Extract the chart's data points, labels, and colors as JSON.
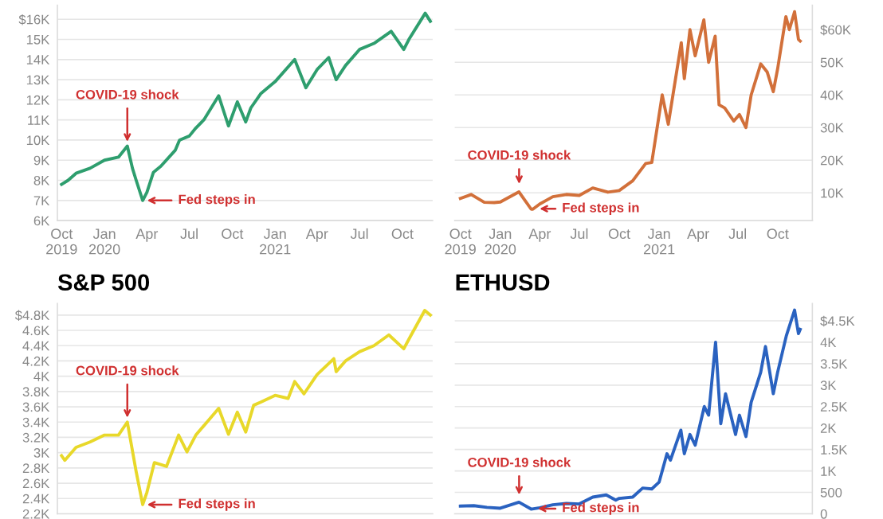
{
  "chart_data": [
    {
      "type": "line",
      "grid": "y",
      "x": [
        "2019-10-01",
        "2019-10-15",
        "2019-11-01",
        "2019-12-01",
        "2020-01-01",
        "2020-01-31",
        "2020-02-19",
        "2020-03-01",
        "2020-03-09",
        "2020-03-23",
        "2020-04-01",
        "2020-04-15",
        "2020-05-01",
        "2020-06-01",
        "2020-06-10",
        "2020-07-01",
        "2020-07-15",
        "2020-08-01",
        "2020-09-02",
        "2020-09-23",
        "2020-10-12",
        "2020-10-30",
        "2020-11-10",
        "2020-12-01",
        "2021-01-01",
        "2021-02-12",
        "2021-03-08",
        "2021-04-01",
        "2021-04-26",
        "2021-05-12",
        "2021-06-01",
        "2021-07-01",
        "2021-08-01",
        "2021-09-07",
        "2021-10-04",
        "2021-10-15",
        "2021-11-19",
        "2021-11-30"
      ],
      "series": [
        {
          "color": "#2e9e6e",
          "values": [
            7800,
            8000,
            8350,
            8600,
            9000,
            9150,
            9700,
            8600,
            8000,
            7000,
            7400,
            8400,
            8700,
            9500,
            10000,
            10200,
            10600,
            11000,
            12200,
            10700,
            11900,
            10900,
            11600,
            12300,
            12900,
            14000,
            12600,
            13500,
            14100,
            13000,
            13700,
            14500,
            14800,
            15400,
            14500,
            15000,
            16300,
            15900
          ]
        }
      ],
      "xlim": [
        "2019-09-22",
        "2021-12-05"
      ],
      "xticks": [
        {
          "value": "2019-10-01",
          "label": "Oct\n2019"
        },
        {
          "value": "2020-01-01",
          "label": "Jan\n2020"
        },
        {
          "value": "2020-04-01",
          "label": "Apr"
        },
        {
          "value": "2020-07-01",
          "label": "Jul"
        },
        {
          "value": "2020-10-01",
          "label": "Oct"
        },
        {
          "value": "2021-01-01",
          "label": "Jan\n2021"
        },
        {
          "value": "2021-04-01",
          "label": "Apr"
        },
        {
          "value": "2021-07-01",
          "label": "Jul"
        },
        {
          "value": "2021-10-01",
          "label": "Oct"
        }
      ],
      "ylim": [
        6000,
        16700
      ],
      "yticks": [
        {
          "value": 16000,
          "label": "$16K"
        },
        {
          "value": 15000,
          "label": "15K"
        },
        {
          "value": 14000,
          "label": "14K"
        },
        {
          "value": 13000,
          "label": "13K"
        },
        {
          "value": 12000,
          "label": "12K"
        },
        {
          "value": 11000,
          "label": "11K"
        },
        {
          "value": 10000,
          "label": "10K"
        },
        {
          "value": 9000,
          "label": "9K"
        },
        {
          "value": 8000,
          "label": "8K"
        },
        {
          "value": 7000,
          "label": "7K"
        },
        {
          "value": 6000,
          "label": "6K"
        }
      ],
      "annotations": [
        {
          "text": "COVID-19 shock",
          "x": "2020-02-19",
          "y": 9700
        },
        {
          "text": "Fed steps in",
          "x": "2020-03-23",
          "y": 7000
        }
      ]
    },
    {
      "type": "line",
      "grid": "y",
      "x": [
        "2019-10-01",
        "2019-10-26",
        "2019-11-25",
        "2019-12-18",
        "2020-01-01",
        "2020-02-13",
        "2020-03-12",
        "2020-03-16",
        "2020-04-01",
        "2020-05-01",
        "2020-06-01",
        "2020-07-01",
        "2020-08-01",
        "2020-09-05",
        "2020-10-01",
        "2020-11-01",
        "2020-12-01",
        "2020-12-15",
        "2021-01-08",
        "2021-01-22",
        "2021-02-21",
        "2021-02-28",
        "2021-03-13",
        "2021-03-25",
        "2021-04-14",
        "2021-04-25",
        "2021-05-10",
        "2021-05-19",
        "2021-06-01",
        "2021-06-22",
        "2021-07-05",
        "2021-07-20",
        "2021-08-01",
        "2021-08-23",
        "2021-09-07",
        "2021-09-21",
        "2021-10-01",
        "2021-10-20",
        "2021-10-28",
        "2021-11-09",
        "2021-11-18",
        "2021-11-22"
      ],
      "series": [
        {
          "color": "#d2703a",
          "axis": "y2",
          "values": [
            8300,
            9500,
            7100,
            7000,
            7200,
            10300,
            5000,
            5000,
            6600,
            8800,
            9500,
            9200,
            11500,
            10200,
            10700,
            13700,
            19000,
            19300,
            40000,
            31000,
            56000,
            45000,
            60000,
            52000,
            63000,
            50000,
            58000,
            37000,
            36000,
            32000,
            34000,
            30000,
            40000,
            49500,
            47000,
            41000,
            48000,
            64000,
            60000,
            65500,
            57000,
            56500
          ]
        }
      ],
      "xlim": [
        "2019-09-18",
        "2021-12-20"
      ],
      "xticks": [
        {
          "value": "2019-10-01",
          "label": "Oct\n2019"
        },
        {
          "value": "2020-01-01",
          "label": "Jan\n2020"
        },
        {
          "value": "2020-04-01",
          "label": "Apr"
        },
        {
          "value": "2020-07-01",
          "label": "Jul"
        },
        {
          "value": "2020-10-01",
          "label": "Oct"
        },
        {
          "value": "2021-01-01",
          "label": "Jan\n2021"
        },
        {
          "value": "2021-04-01",
          "label": "Apr"
        },
        {
          "value": "2021-07-01",
          "label": "Jul"
        },
        {
          "value": "2021-10-01",
          "label": "Oct"
        }
      ],
      "y2lim": [
        1500,
        67500
      ],
      "y2ticks": [
        {
          "value": 60000,
          "label": "$60K"
        },
        {
          "value": 50000,
          "label": "50K"
        },
        {
          "value": 40000,
          "label": "40K"
        },
        {
          "value": 30000,
          "label": "30K"
        },
        {
          "value": 20000,
          "label": "20K"
        },
        {
          "value": 10000,
          "label": "10K"
        }
      ],
      "annotations": [
        "COVID-19 shock",
        "Fed steps in"
      ]
    },
    {
      "type": "line",
      "grid": "y",
      "title": "S&P 500",
      "tick_labels": "y",
      "x": [
        "2019-10-01",
        "2019-10-08",
        "2019-11-01",
        "2019-12-01",
        "2020-01-01",
        "2020-01-31",
        "2020-02-19",
        "2020-03-09",
        "2020-03-23",
        "2020-04-01",
        "2020-04-17",
        "2020-05-13",
        "2020-06-08",
        "2020-06-26",
        "2020-07-15",
        "2020-09-02",
        "2020-09-23",
        "2020-10-12",
        "2020-10-30",
        "2020-11-16",
        "2020-12-01",
        "2021-01-01",
        "2021-01-29",
        "2021-02-12",
        "2021-03-04",
        "2021-04-01",
        "2021-05-07",
        "2021-05-12",
        "2021-06-01",
        "2021-07-01",
        "2021-08-01",
        "2021-09-02",
        "2021-10-04",
        "2021-10-20",
        "2021-11-18",
        "2021-11-30"
      ],
      "series": [
        {
          "color": "#e8d82a",
          "values": [
            2960,
            2900,
            3070,
            3140,
            3230,
            3230,
            3400,
            2750,
            2320,
            2480,
            2870,
            2820,
            3230,
            3010,
            3230,
            3580,
            3240,
            3530,
            3270,
            3620,
            3660,
            3750,
            3710,
            3930,
            3770,
            4020,
            4230,
            4060,
            4200,
            4320,
            4400,
            4540,
            4360,
            4540,
            4860,
            4800
          ]
        }
      ],
      "xlim": [
        "2019-09-22",
        "2021-12-05"
      ],
      "ylim": [
        2200,
        4950
      ],
      "yticks": [
        {
          "value": 4800,
          "label": "$4.8K"
        },
        {
          "value": 4600,
          "label": "4.6K"
        },
        {
          "value": 4400,
          "label": "4.4K"
        },
        {
          "value": 4200,
          "label": "4.2K"
        },
        {
          "value": 4000,
          "label": "4K"
        },
        {
          "value": 3800,
          "label": "3.8K"
        },
        {
          "value": 3600,
          "label": "3.6K"
        },
        {
          "value": 3400,
          "label": "3.4K"
        },
        {
          "value": 3200,
          "label": "3.2K"
        },
        {
          "value": 3000,
          "label": "3K"
        },
        {
          "value": 2800,
          "label": "2.8K"
        },
        {
          "value": 2600,
          "label": "2.6K"
        },
        {
          "value": 2400,
          "label": "2.4K"
        },
        {
          "value": 2200,
          "label": "2.2K"
        }
      ],
      "annotations": [
        {
          "text": "COVID-19 shock",
          "x": "2020-02-19",
          "y": 3400
        },
        {
          "text": "Fed steps in",
          "x": "2020-03-23",
          "y": 2320
        }
      ]
    },
    {
      "type": "line",
      "grid": "y",
      "title": "ETHUSD",
      "tick_labels": "y2",
      "x": [
        "2019-10-01",
        "2019-11-01",
        "2019-12-01",
        "2020-01-01",
        "2020-02-13",
        "2020-03-12",
        "2020-04-01",
        "2020-05-01",
        "2020-06-01",
        "2020-07-01",
        "2020-08-01",
        "2020-09-01",
        "2020-09-23",
        "2020-10-01",
        "2020-11-01",
        "2020-11-24",
        "2020-12-15",
        "2021-01-01",
        "2021-01-19",
        "2021-01-27",
        "2021-02-20",
        "2021-02-28",
        "2021-03-13",
        "2021-03-25",
        "2021-04-15",
        "2021-04-25",
        "2021-05-11",
        "2021-05-23",
        "2021-06-03",
        "2021-06-26",
        "2021-07-05",
        "2021-07-20",
        "2021-08-01",
        "2021-08-23",
        "2021-09-03",
        "2021-09-21",
        "2021-10-01",
        "2021-10-21",
        "2021-11-09",
        "2021-11-18",
        "2021-11-22"
      ],
      "series": [
        {
          "color": "#2a62c0",
          "axis": "y2",
          "values": [
            180,
            190,
            150,
            130,
            270,
            110,
            140,
            210,
            240,
            230,
            390,
            440,
            320,
            360,
            390,
            600,
            580,
            740,
            1400,
            1250,
            1950,
            1400,
            1850,
            1600,
            2500,
            2300,
            4000,
            2100,
            2800,
            1850,
            2300,
            1800,
            2600,
            3300,
            3900,
            2800,
            3300,
            4150,
            4750,
            4200,
            4300
          ]
        }
      ],
      "xlim": [
        "2019-09-18",
        "2021-12-20"
      ],
      "y2lim": [
        0,
        4900
      ],
      "y2ticks": [
        {
          "value": 4500,
          "label": "$4.5K"
        },
        {
          "value": 4000,
          "label": "4K"
        },
        {
          "value": 3500,
          "label": "3.5K"
        },
        {
          "value": 3000,
          "label": "3K"
        },
        {
          "value": 2500,
          "label": "2.5K"
        },
        {
          "value": 2000,
          "label": "2K"
        },
        {
          "value": 1500,
          "label": "1.5K"
        },
        {
          "value": 1000,
          "label": "1K"
        },
        500,
        0
      ],
      "annotations": [
        "COVID-19 shock",
        "Fed steps in"
      ]
    }
  ]
}
